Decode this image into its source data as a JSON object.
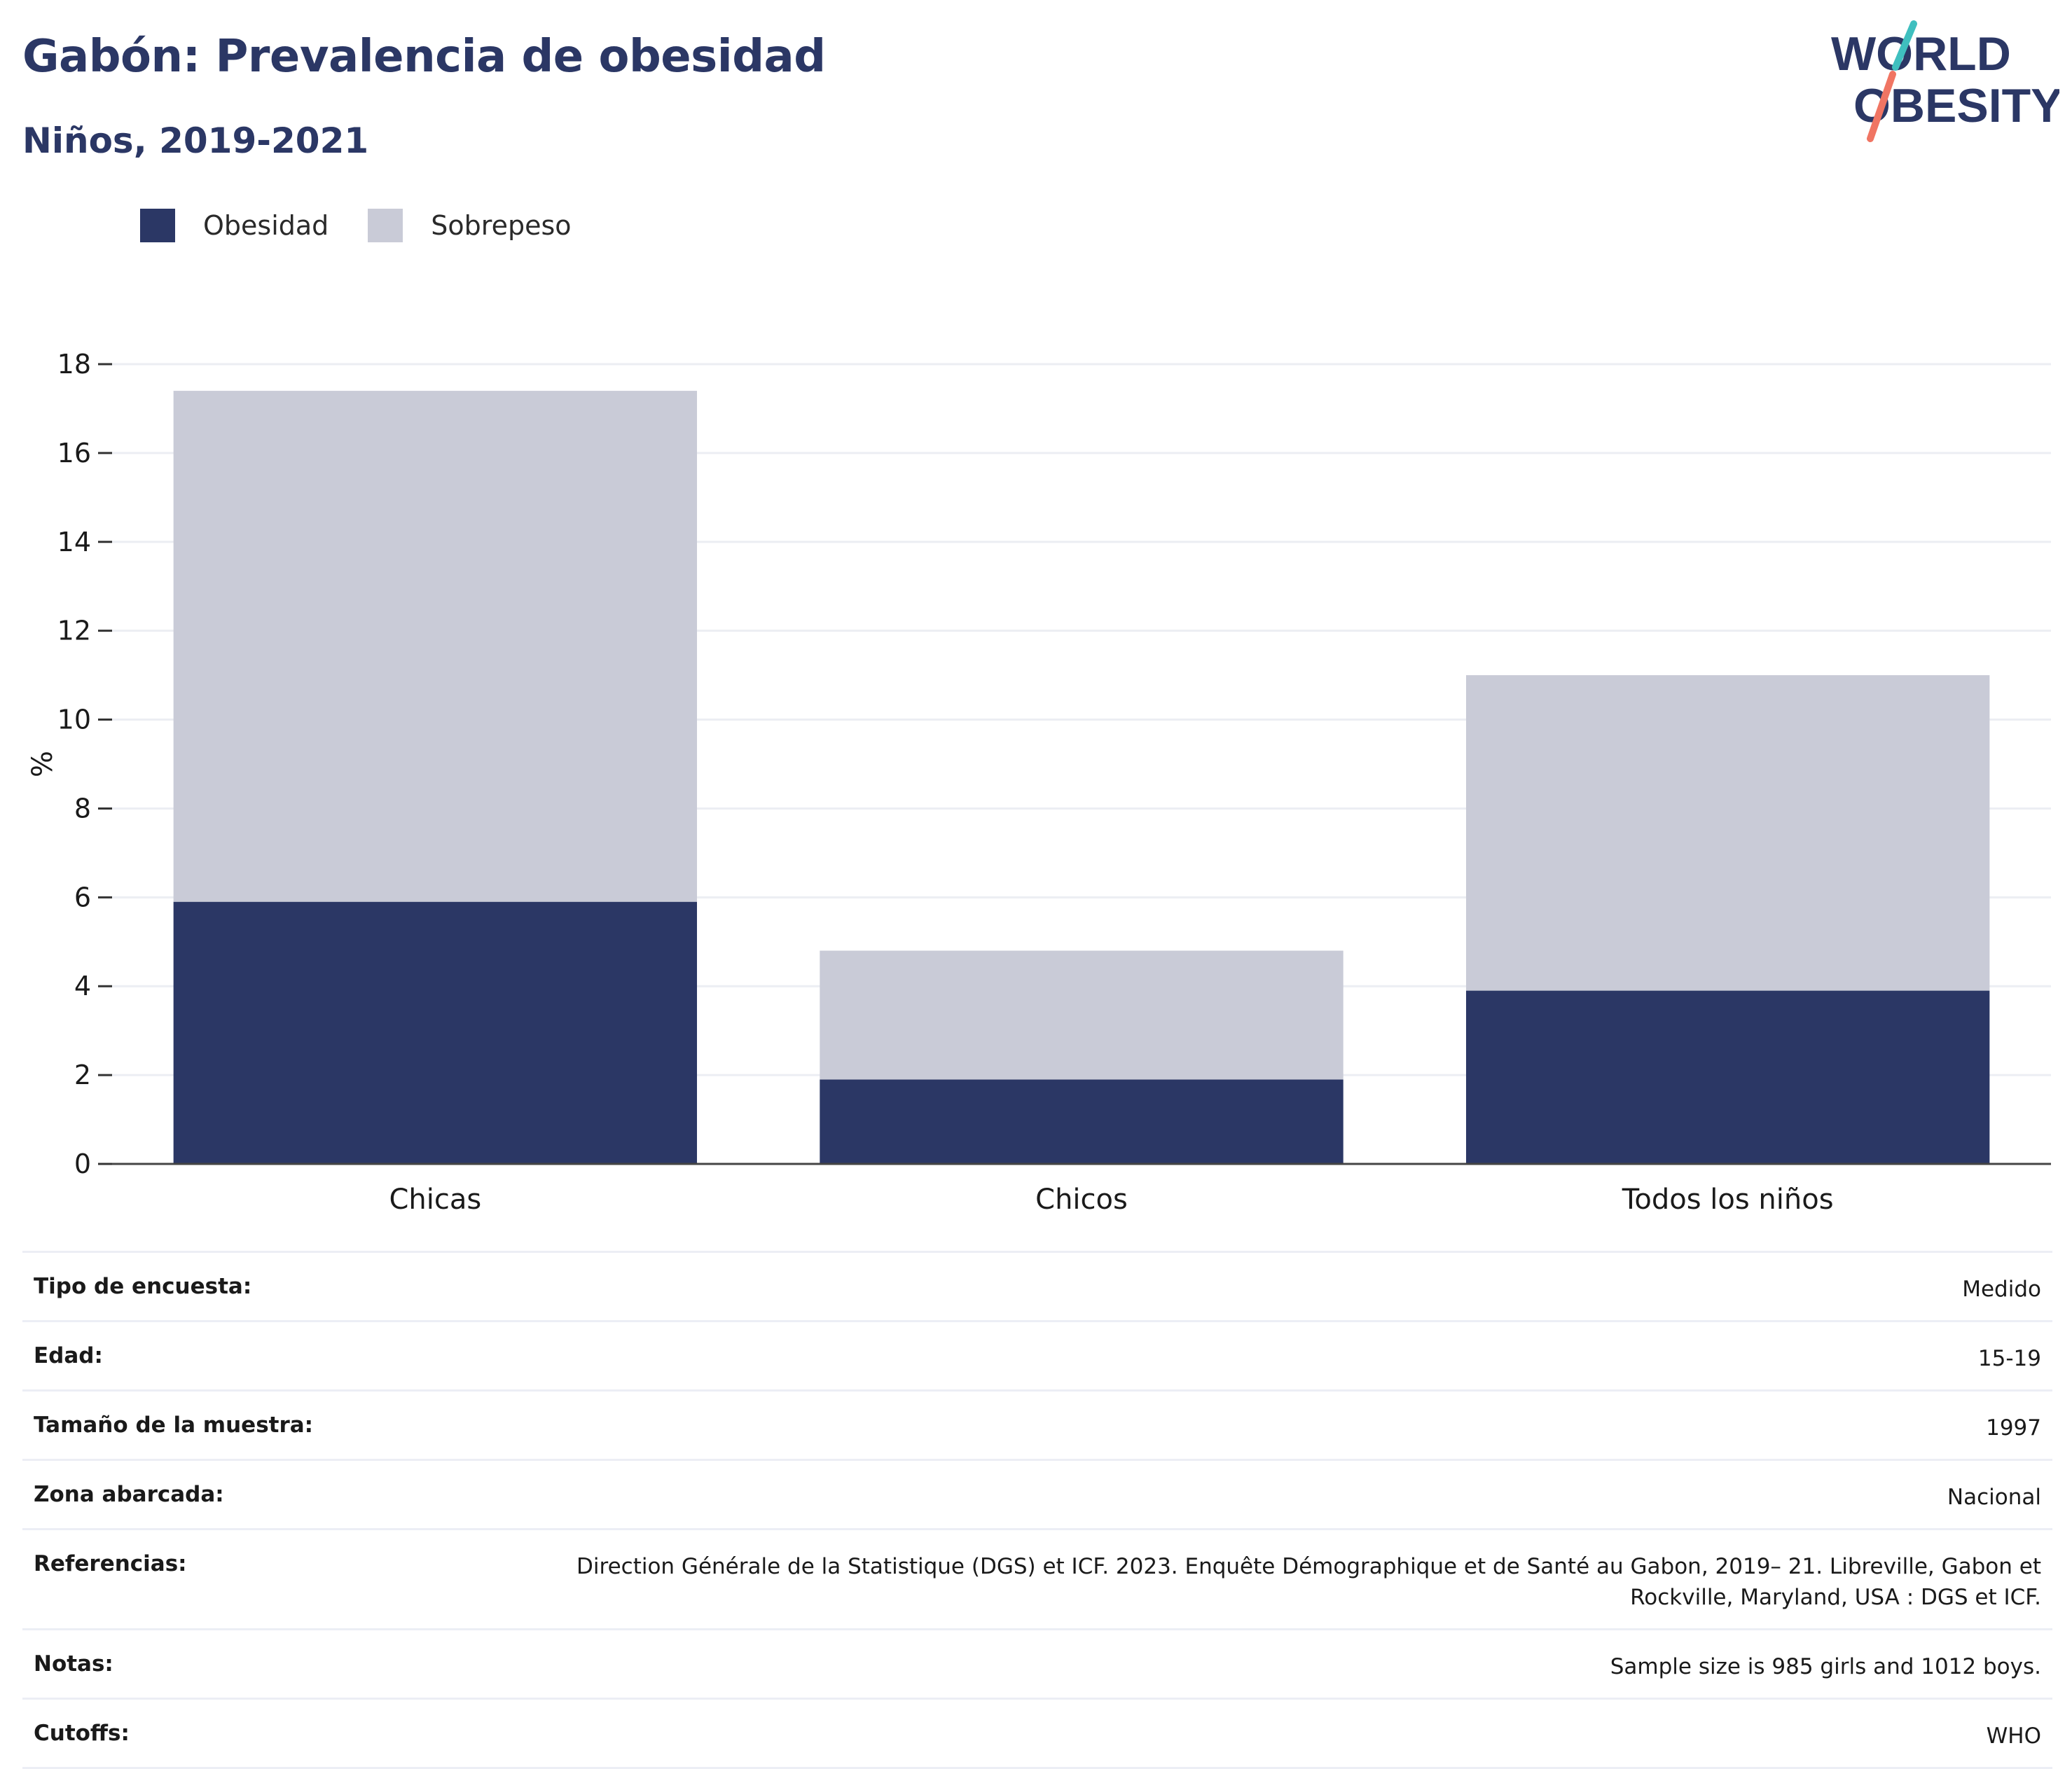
{
  "header": {
    "title": "Gabón: Prevalencia de obesidad",
    "subtitle": "Niños, 2019-2021"
  },
  "logo": {
    "line1": "WORLD",
    "line2": "OBESITY",
    "accent_teal": "#3fbfbf",
    "accent_coral": "#f07563"
  },
  "legend": {
    "items": [
      {
        "label": "Obesidad",
        "color": "#2b3765"
      },
      {
        "label": "Sobrepeso",
        "color": "#c9cbd7"
      }
    ]
  },
  "chart_data": {
    "type": "bar",
    "stacked": true,
    "categories": [
      "Chicas",
      "Chicos",
      "Todos los niños"
    ],
    "series": [
      {
        "name": "Obesidad",
        "color": "#2b3765",
        "values": [
          5.9,
          1.9,
          3.9
        ]
      },
      {
        "name": "Sobrepeso",
        "color": "#c9cbd7",
        "values": [
          11.5,
          2.9,
          7.1
        ]
      }
    ],
    "ylabel": "%",
    "ylim": [
      0,
      18
    ],
    "yticks": [
      0,
      2,
      4,
      6,
      8,
      10,
      12,
      14,
      16,
      18
    ],
    "grid": true,
    "legend_position": "top-left"
  },
  "details": {
    "rows": [
      {
        "label": "Tipo de encuesta:",
        "value": "Medido"
      },
      {
        "label": "Edad:",
        "value": "15-19"
      },
      {
        "label": "Tamaño de la muestra:",
        "value": "1997"
      },
      {
        "label": "Zona abarcada:",
        "value": "Nacional"
      },
      {
        "label": "Referencias:",
        "value": "Direction Générale de la Statistique (DGS) et ICF. 2023. Enquête Démographique et de Santé au Gabon, 2019– 21. Libreville, Gabon et Rockville, Maryland, USA : DGS et ICF."
      },
      {
        "label": "Notas:",
        "value": "Sample size is 985 girls and 1012 boys."
      },
      {
        "label": "Cutoffs:",
        "value": "WHO"
      }
    ]
  }
}
